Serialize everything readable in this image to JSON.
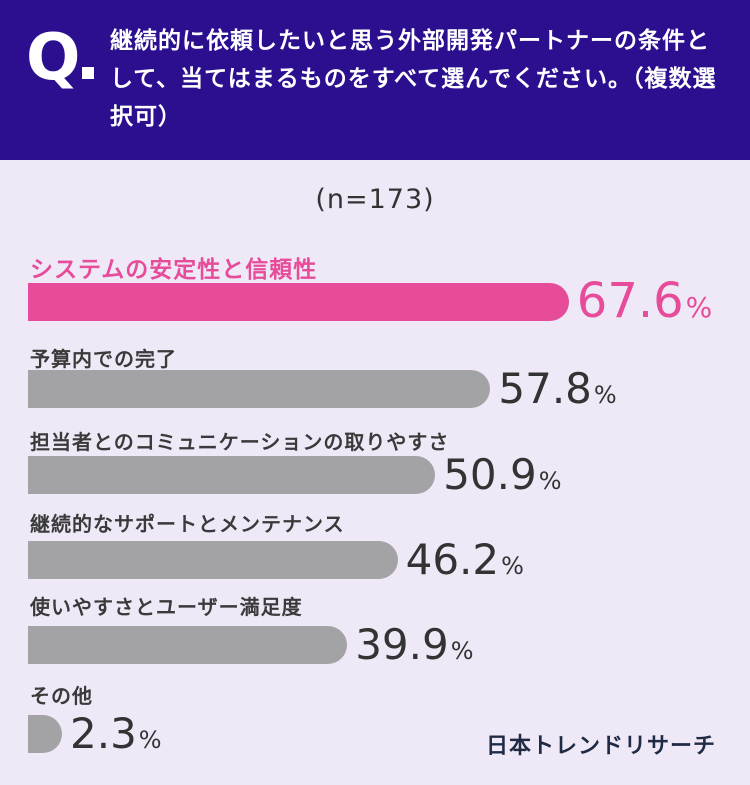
{
  "header": {
    "q_label": "Q",
    "question": "継続的に依頼したいと思う外部開発パートナーの条件として、当てはまるものをすべて選んでください。（複数選択可）"
  },
  "sample": "(n=173)",
  "chart_data": {
    "type": "bar",
    "orientation": "horizontal",
    "unit": "%",
    "categories": [
      "システムの安定性と信頼性",
      "予算内での完了",
      "担当者とのコミュニケーションの取りやすさ",
      "継続的なサポートとメンテナンス",
      "使いやすさとユーザー満足度",
      "その他"
    ],
    "values": [
      67.6,
      57.8,
      50.9,
      46.2,
      39.9,
      2.3
    ],
    "value_labels": [
      "67.6",
      "57.8",
      "50.9",
      "46.2",
      "39.9",
      "2.3"
    ],
    "highlight_index": 0,
    "colors": {
      "highlight": "#e64c9a",
      "default": "#a3a3a6"
    }
  },
  "brand": "日本トレンドリサーチ",
  "colors": {
    "header_bg": "#2c0f8f",
    "page_bg": "#efe9f7"
  }
}
